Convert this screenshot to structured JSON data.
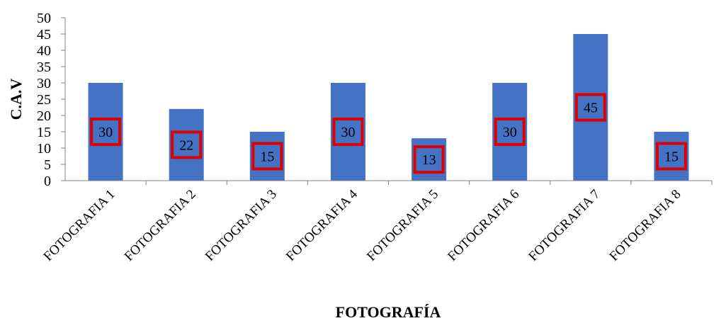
{
  "chart_data": {
    "type": "bar",
    "title": "",
    "xlabel": "FOTOGRAFÍA",
    "ylabel": "C.A.V",
    "categories": [
      "FOTOGRAFIA 1",
      "FOTOGRAFIA 2",
      "FOTOGRAFIA 3",
      "FOTOGRAFIA 4",
      "FOTOGRAFIA 5",
      "FOTOGRAFIA 6",
      "FOTOGRAFIA 7",
      "FOTOGRAFIA 8"
    ],
    "values": [
      30,
      22,
      15,
      30,
      13,
      30,
      45,
      15
    ],
    "ylim": [
      0,
      50
    ],
    "yticks": [
      0,
      5,
      10,
      15,
      20,
      25,
      30,
      35,
      40,
      45,
      50
    ],
    "grid": false,
    "legend": "none",
    "data_labels": true
  },
  "colors": {
    "bar": "#4472C4",
    "label_box_border": "#E00000",
    "axis": "#808080"
  }
}
